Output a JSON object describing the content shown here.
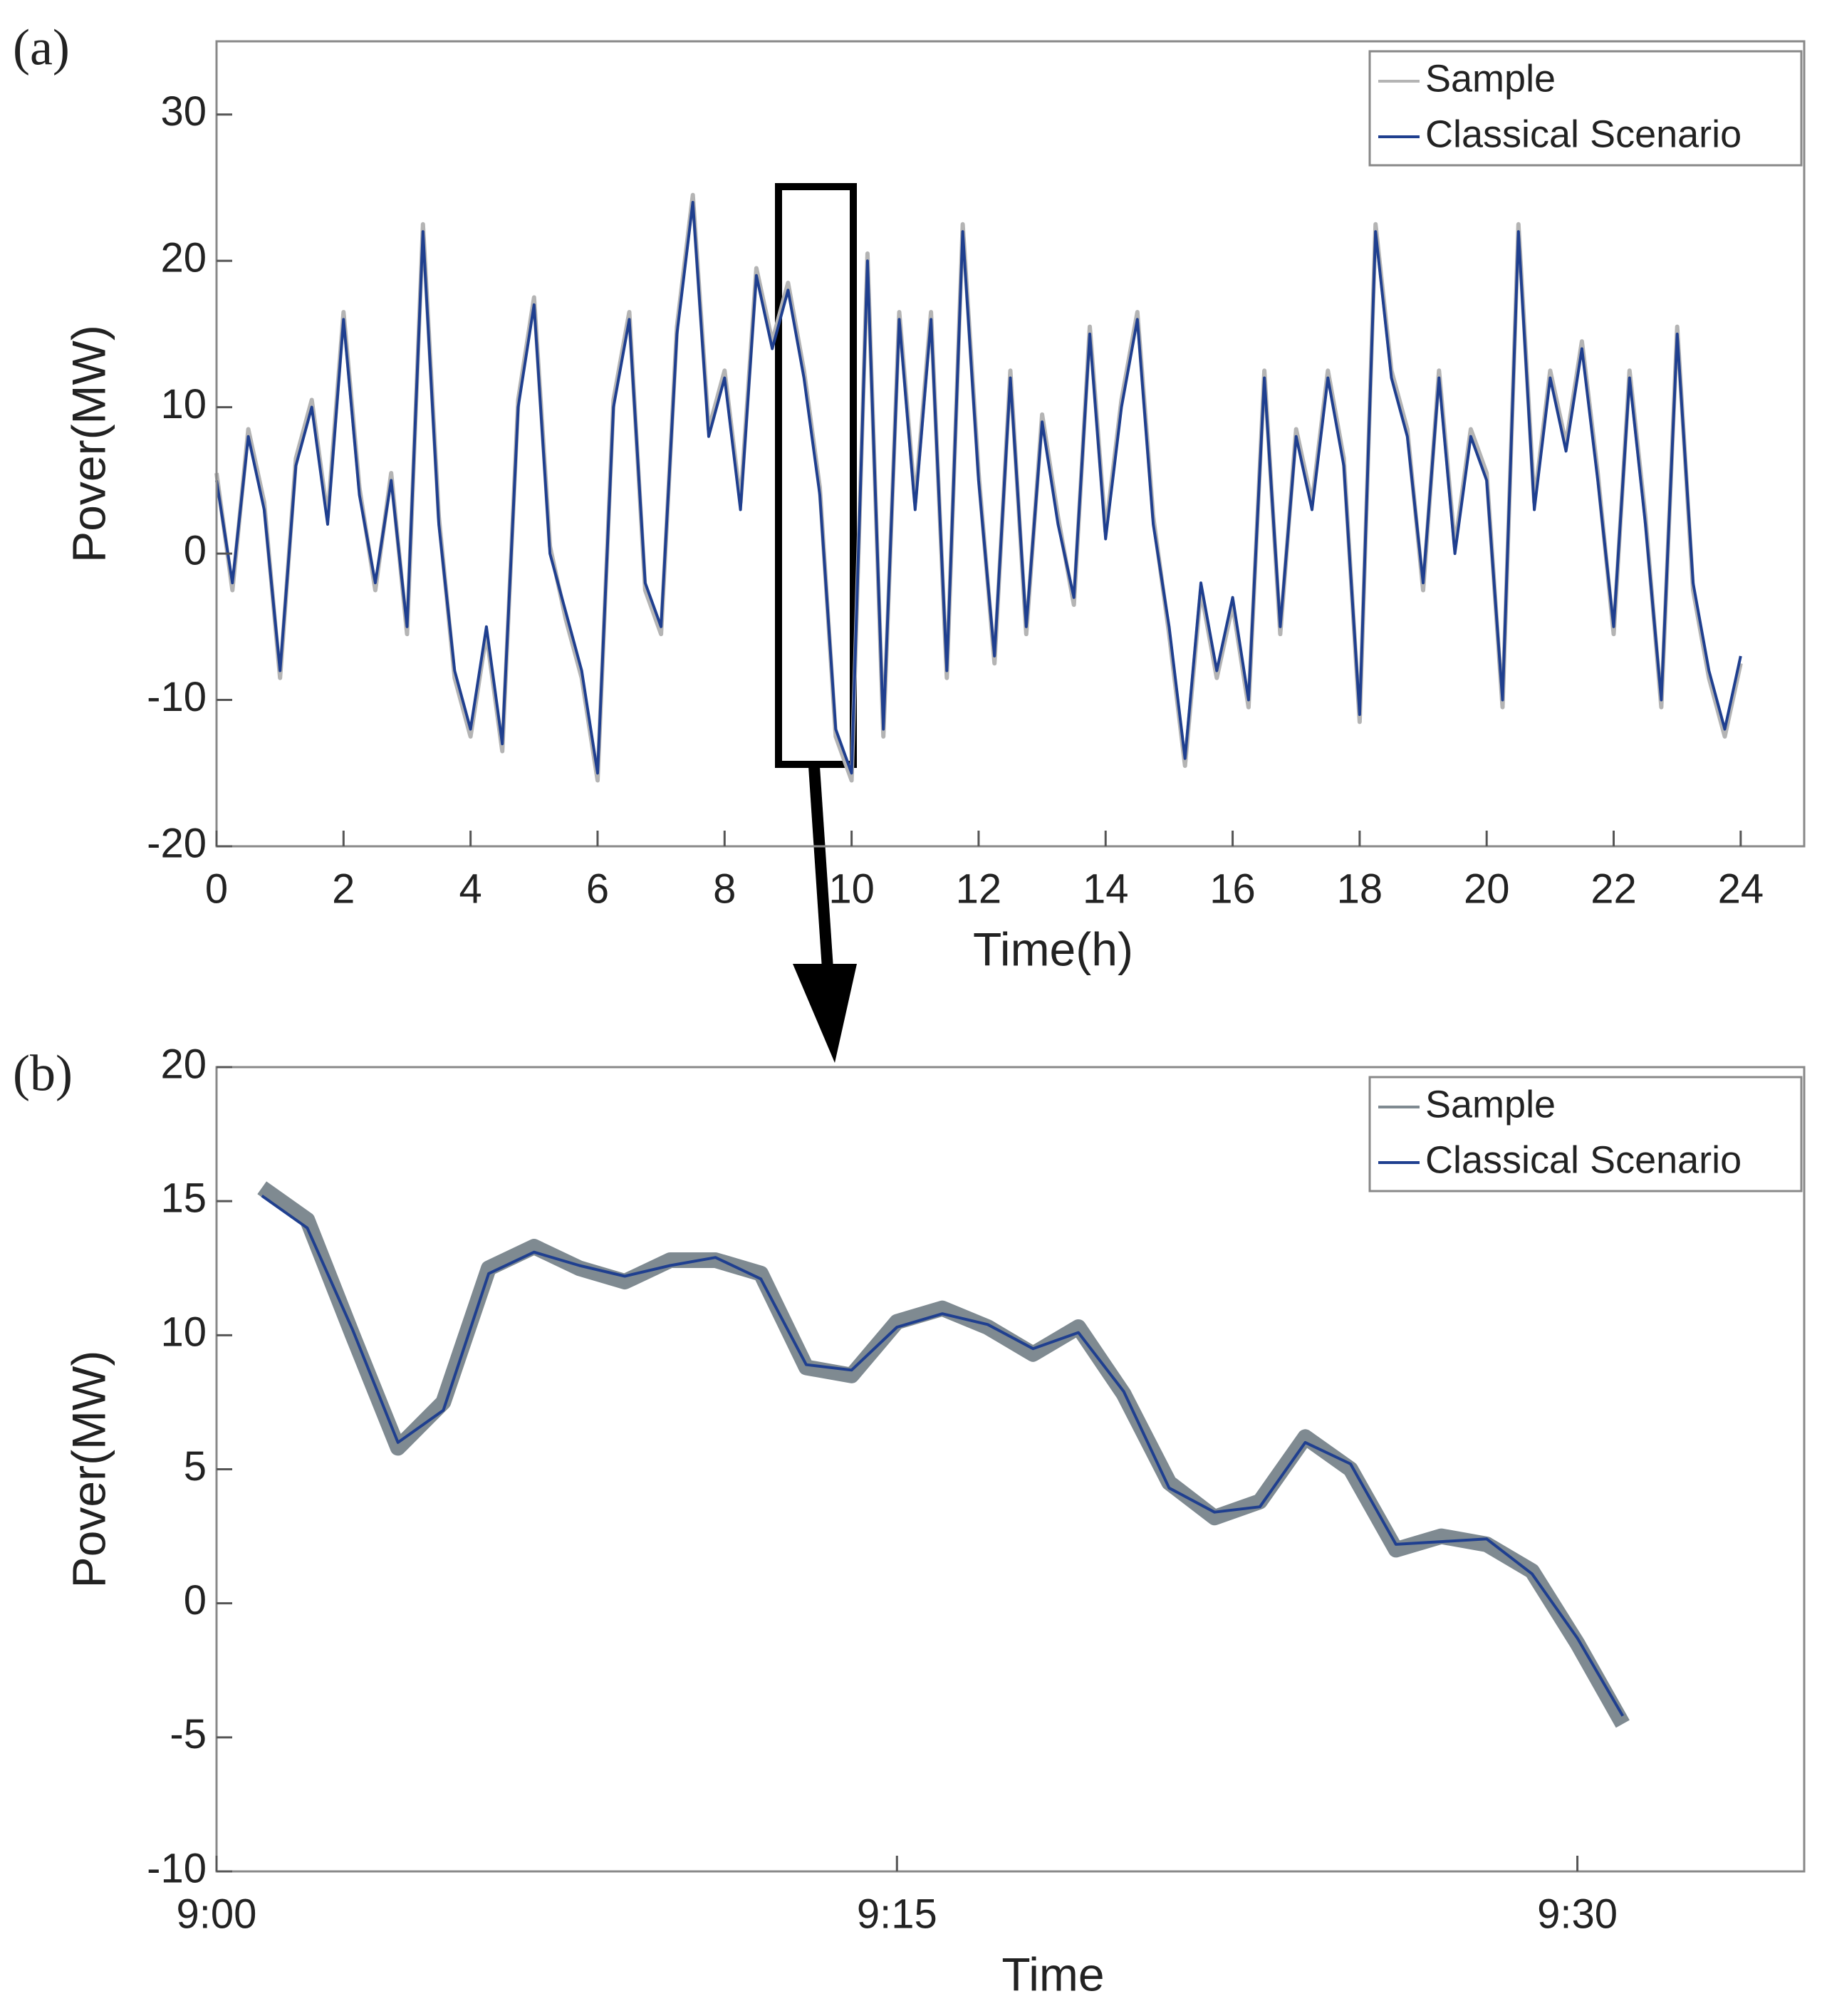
{
  "chart_data": [
    {
      "type": "line",
      "label": "(a)",
      "xlabel": "Time(h)",
      "ylabel": "Pover(MW)",
      "xlim": [
        0,
        25
      ],
      "xticks": [
        0,
        2,
        4,
        6,
        8,
        10,
        12,
        14,
        16,
        18,
        20,
        22,
        24
      ],
      "ylim": [
        -20,
        35
      ],
      "yticks": [
        -20,
        -10,
        0,
        10,
        20,
        30
      ],
      "legend": "upper right",
      "x": [
        0,
        0.25,
        0.5,
        0.75,
        1,
        1.25,
        1.5,
        1.75,
        2,
        2.25,
        2.5,
        2.75,
        3,
        3.25,
        3.5,
        3.75,
        4,
        4.25,
        4.5,
        4.75,
        5,
        5.25,
        5.5,
        5.75,
        6,
        6.25,
        6.5,
        6.75,
        7,
        7.25,
        7.5,
        7.75,
        8,
        8.25,
        8.5,
        8.75,
        9,
        9.25,
        9.5,
        9.75,
        10,
        10.25,
        10.5,
        10.75,
        11,
        11.25,
        11.5,
        11.75,
        12,
        12.25,
        12.5,
        12.75,
        13,
        13.25,
        13.5,
        13.75,
        14,
        14.25,
        14.5,
        14.75,
        15,
        15.25,
        15.5,
        15.75,
        16,
        16.25,
        16.5,
        16.75,
        17,
        17.25,
        17.5,
        17.75,
        18,
        18.25,
        18.5,
        18.75,
        19,
        19.25,
        19.5,
        19.75,
        20,
        20.25,
        20.5,
        20.75,
        21,
        21.25,
        21.5,
        21.75,
        22,
        22.25,
        22.5,
        22.75,
        23,
        23.25,
        23.5,
        23.75,
        24
      ],
      "series": [
        {
          "name": "Sample",
          "color": "#b4b4b4",
          "values": [
            5.5,
            -2.5,
            8.5,
            3.5,
            -8.5,
            6.5,
            10.5,
            2.5,
            16.5,
            4.5,
            -2.5,
            5.5,
            -5.5,
            22.5,
            2.5,
            -8.5,
            -12.5,
            -5.5,
            -13.5,
            10.5,
            17.5,
            0.5,
            -4.5,
            -8.5,
            -15.5,
            10.5,
            16.5,
            -2.5,
            -5.5,
            15.5,
            24.5,
            8.5,
            12.5,
            3.5,
            19.5,
            14.5,
            18.5,
            12.5,
            4.5,
            -12.5,
            -15.5,
            20.5,
            -12.5,
            16.5,
            3.5,
            16.5,
            -8.5,
            22.5,
            5.5,
            -7.5,
            12.5,
            -5.5,
            9.5,
            2.5,
            -3.5,
            15.5,
            1.5,
            10.5,
            16.5,
            2.5,
            -5.5,
            -14.5,
            -2.5,
            -8.5,
            -3.5,
            -10.5,
            12.5,
            -5.5,
            8.5,
            3.5,
            12.5,
            6.5,
            -11.5,
            22.5,
            12.5,
            8.5,
            -2.5,
            12.5,
            0.5,
            8.5,
            5.5,
            -10.5,
            22.5,
            3.5,
            12.5,
            7.5,
            14.5,
            5.5,
            -5.5,
            12.5,
            2.5,
            -10.5,
            15.5,
            -2.5,
            -8.5,
            -12.5,
            -7.5
          ]
        },
        {
          "name": "Classical Scenario",
          "color": "#1f3f8f",
          "values": [
            5,
            -2,
            8,
            3,
            -8,
            6,
            10,
            2,
            16,
            4,
            -2,
            5,
            -5,
            22,
            2,
            -8,
            -12,
            -5,
            -13,
            10,
            17,
            0,
            -4,
            -8,
            -15,
            10,
            16,
            -2,
            -5,
            15,
            24,
            8,
            12,
            3,
            19,
            14,
            18,
            12,
            4,
            -12,
            -15,
            20,
            -12,
            16,
            3,
            16,
            -8,
            22,
            5,
            -7,
            12,
            -5,
            9,
            2,
            -3,
            15,
            1,
            10,
            16,
            2,
            -5,
            -14,
            -2,
            -8,
            -3,
            -10,
            12,
            -5,
            8,
            3,
            12,
            6,
            -11,
            22,
            12,
            8,
            -2,
            12,
            0,
            8,
            5,
            -10,
            22,
            3,
            12,
            7,
            14,
            5,
            -5,
            12,
            2,
            -10,
            15,
            -2,
            -8,
            -12,
            -7
          ]
        }
      ]
    },
    {
      "type": "line",
      "label": "(b)",
      "xlabel": "Time",
      "ylabel": "Pover(MW)",
      "xlim": [
        0,
        35
      ],
      "xticks": [
        {
          "value": 0,
          "label": "9:00"
        },
        {
          "value": 15,
          "label": "9:15"
        },
        {
          "value": 30,
          "label": "9:30"
        }
      ],
      "ylim": [
        -10,
        20
      ],
      "yticks": [
        -10,
        -5,
        0,
        5,
        10,
        15,
        20
      ],
      "legend": "upper right",
      "x": [
        1,
        2,
        3,
        4,
        5,
        6,
        7,
        8,
        9,
        10,
        11,
        12,
        13,
        14,
        15,
        16,
        17,
        18,
        19,
        20,
        21,
        22,
        23,
        24,
        25,
        26,
        27,
        28,
        29,
        30,
        31
      ],
      "series": [
        {
          "name": "Sample",
          "color": "#7f8a91",
          "values": [
            15.5,
            14.3,
            10,
            5.8,
            7.5,
            12.5,
            13.3,
            12.5,
            12,
            12.8,
            12.8,
            12.3,
            8.8,
            8.5,
            10.5,
            11,
            10.3,
            9.3,
            10.3,
            7.8,
            4.5,
            3.2,
            3.8,
            6.2,
            5,
            2,
            2.5,
            2.2,
            1.2,
            -1.5,
            -4.5
          ]
        },
        {
          "name": "Classical Scenario",
          "color": "#1f3f8f",
          "values": [
            15.2,
            14,
            10.2,
            6,
            7.2,
            12.3,
            13.1,
            12.6,
            12.2,
            12.6,
            12.9,
            12.1,
            8.9,
            8.7,
            10.3,
            10.8,
            10.4,
            9.5,
            10.1,
            7.9,
            4.3,
            3.4,
            3.6,
            6,
            5.2,
            2.2,
            2.3,
            2.4,
            1.1,
            -1.3,
            -4.2
          ]
        }
      ]
    }
  ]
}
